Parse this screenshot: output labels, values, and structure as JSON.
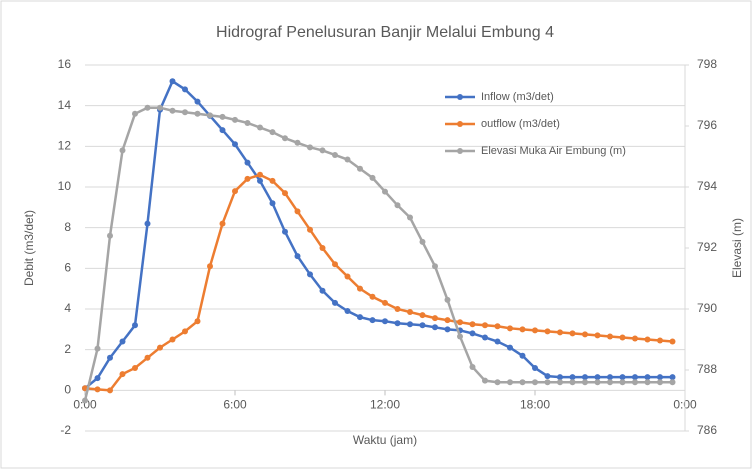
{
  "chart_data": {
    "type": "line",
    "title": "Hidrograf Penelusuran Banjir Melalui Embung 4",
    "x_label": "Waktu (jam)",
    "y_label": "Debit (m3/det)",
    "y2_label": "Elevasi (m)",
    "x": [
      0,
      0.5,
      1,
      1.5,
      2,
      2.5,
      3,
      3.5,
      4,
      4.5,
      5,
      5.5,
      6,
      6.5,
      7,
      7.5,
      8,
      8.5,
      9,
      9.5,
      10,
      10.5,
      11,
      11.5,
      12,
      12.5,
      13,
      13.5,
      14,
      14.5,
      15,
      15.5,
      16,
      16.5,
      17,
      17.5,
      18,
      18.5,
      19,
      19.5,
      20,
      20.5,
      21,
      21.5,
      22,
      22.5,
      23,
      23.5
    ],
    "xlim": [
      0,
      24
    ],
    "xticks": [
      {
        "value": 0,
        "label": "0:00"
      },
      {
        "value": 6,
        "label": "6:00"
      },
      {
        "value": 12,
        "label": "12:00"
      },
      {
        "value": 18,
        "label": "18:00"
      },
      {
        "value": 24,
        "label": "0:00"
      }
    ],
    "ylim": [
      -2,
      16
    ],
    "yticks": [
      -2,
      0,
      2,
      4,
      6,
      8,
      10,
      12,
      14,
      16
    ],
    "y2lim": [
      786,
      798
    ],
    "y2ticks": [
      786,
      788,
      790,
      792,
      794,
      796,
      798
    ],
    "grid": true,
    "legend": "top-right",
    "series": [
      {
        "name": "Inflow (m3/det)",
        "color": "#4472c4",
        "values": [
          0.1,
          0.6,
          1.6,
          2.4,
          3.2,
          8.2,
          13.8,
          15.2,
          14.8,
          14.2,
          13.5,
          12.8,
          12.1,
          11.2,
          10.3,
          9.2,
          7.8,
          6.6,
          5.7,
          4.9,
          4.3,
          3.9,
          3.6,
          3.45,
          3.4,
          3.3,
          3.25,
          3.2,
          3.1,
          3.0,
          2.95,
          2.8,
          2.6,
          2.4,
          2.1,
          1.7,
          1.1,
          0.7,
          0.65,
          0.65,
          0.65,
          0.65,
          0.65,
          0.65,
          0.65,
          0.65,
          0.65,
          0.65
        ]
      },
      {
        "name": "outflow (m3/det)",
        "color": "#ed7d31",
        "values": [
          0.1,
          0.05,
          0.0,
          0.8,
          1.1,
          1.6,
          2.1,
          2.5,
          2.9,
          3.4,
          6.1,
          8.2,
          9.8,
          10.4,
          10.6,
          10.3,
          9.7,
          8.8,
          7.9,
          7.0,
          6.2,
          5.6,
          5.0,
          4.6,
          4.3,
          4.0,
          3.85,
          3.7,
          3.55,
          3.45,
          3.35,
          3.25,
          3.2,
          3.15,
          3.05,
          3.0,
          2.95,
          2.9,
          2.85,
          2.8,
          2.75,
          2.7,
          2.65,
          2.6,
          2.55,
          2.5,
          2.45,
          2.4
        ]
      },
      {
        "name": "Elevasi Muka Air Embung (m)",
        "color": "#a5a5a5",
        "axis": "y2",
        "values": [
          787.0,
          788.7,
          792.4,
          795.2,
          796.4,
          796.6,
          796.6,
          796.5,
          796.45,
          796.4,
          796.35,
          796.3,
          796.2,
          796.1,
          795.95,
          795.8,
          795.6,
          795.45,
          795.3,
          795.2,
          795.05,
          794.9,
          794.6,
          794.3,
          793.85,
          793.4,
          793.0,
          792.2,
          791.4,
          790.3,
          789.1,
          788.1,
          787.65,
          787.6,
          787.6,
          787.6,
          787.6,
          787.6,
          787.6,
          787.6,
          787.6,
          787.6,
          787.6,
          787.6,
          787.6,
          787.6,
          787.6,
          787.6
        ]
      }
    ]
  }
}
